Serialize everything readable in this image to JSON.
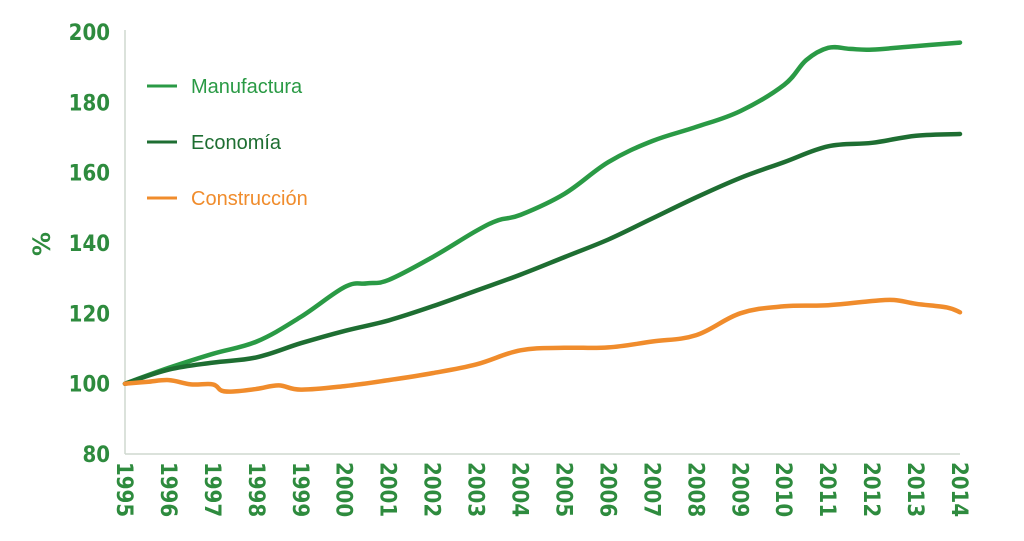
{
  "colors": {
    "axis_text": "#2e8b3e",
    "axis_line": "#cfd8cf",
    "manufactura": "#2a9a45",
    "economia": "#1e6e32",
    "construccion": "#f08c2c"
  },
  "chart_data": {
    "type": "line",
    "ylabel": "%",
    "xlabel": "",
    "title": "",
    "ylim": [
      80,
      200
    ],
    "yticks": [
      80,
      100,
      120,
      140,
      160,
      180,
      200
    ],
    "xlim": [
      1995,
      2014
    ],
    "categories": [
      "1995",
      "1996",
      "1997",
      "1998",
      "1999",
      "2000",
      "2001",
      "2002",
      "2003",
      "2004",
      "2005",
      "2006",
      "2007",
      "2008",
      "2009",
      "2010",
      "2011",
      "2012",
      "2013",
      "2014"
    ],
    "legend_position": "top-left",
    "grid": false,
    "series": [
      {
        "name": "Manufactura",
        "color_key": "manufactura",
        "points": [
          [
            1995,
            100
          ],
          [
            1996,
            104.5
          ],
          [
            1997,
            108.5
          ],
          [
            1998,
            112
          ],
          [
            1999,
            119
          ],
          [
            2000,
            127.5
          ],
          [
            2000.5,
            128.5
          ],
          [
            2001,
            129.5
          ],
          [
            2002,
            136
          ],
          [
            2003,
            143.5
          ],
          [
            2003.5,
            146.5
          ],
          [
            2004,
            148
          ],
          [
            2005,
            154
          ],
          [
            2006,
            163
          ],
          [
            2007,
            169
          ],
          [
            2008,
            173
          ],
          [
            2009,
            177.5
          ],
          [
            2010,
            185
          ],
          [
            2010.5,
            192
          ],
          [
            2011,
            195.5
          ],
          [
            2011.5,
            195.2
          ],
          [
            2012,
            195
          ],
          [
            2013,
            196
          ],
          [
            2014,
            197
          ]
        ]
      },
      {
        "name": "Economía",
        "color_key": "economia",
        "points": [
          [
            1995,
            100
          ],
          [
            1996,
            104
          ],
          [
            1997,
            106
          ],
          [
            1998,
            107.5
          ],
          [
            1999,
            111.5
          ],
          [
            2000,
            115
          ],
          [
            2001,
            118
          ],
          [
            2002,
            122
          ],
          [
            2003,
            126.5
          ],
          [
            2004,
            131
          ],
          [
            2005,
            136
          ],
          [
            2006,
            141
          ],
          [
            2007,
            147
          ],
          [
            2008,
            153
          ],
          [
            2009,
            158.5
          ],
          [
            2010,
            163
          ],
          [
            2011,
            167.5
          ],
          [
            2012,
            168.5
          ],
          [
            2013,
            170.5
          ],
          [
            2014,
            171
          ]
        ]
      },
      {
        "name": "Construcción",
        "color_key": "construccion",
        "points": [
          [
            1995,
            100
          ],
          [
            1995.5,
            100.5
          ],
          [
            1996,
            101
          ],
          [
            1996.5,
            99.8
          ],
          [
            1997,
            99.8
          ],
          [
            1997.2,
            98
          ],
          [
            1997.5,
            97.8
          ],
          [
            1998,
            98.5
          ],
          [
            1998.5,
            99.5
          ],
          [
            1999,
            98.3
          ],
          [
            2000,
            99.3
          ],
          [
            2001,
            101
          ],
          [
            2002,
            103
          ],
          [
            2003,
            105.5
          ],
          [
            2004,
            109.5
          ],
          [
            2005,
            110.2
          ],
          [
            2006,
            110.3
          ],
          [
            2007,
            112
          ],
          [
            2008,
            113.8
          ],
          [
            2009,
            120
          ],
          [
            2010,
            122
          ],
          [
            2011,
            122.3
          ],
          [
            2012,
            123.5
          ],
          [
            2012.5,
            123.8
          ],
          [
            2013,
            122.7
          ],
          [
            2013.7,
            121.7
          ],
          [
            2014,
            120.3
          ]
        ]
      }
    ]
  }
}
